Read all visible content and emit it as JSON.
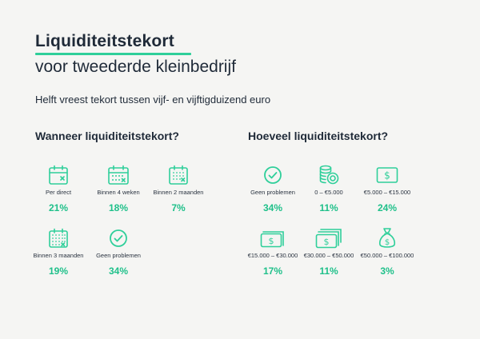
{
  "header": {
    "title": "Liquiditeitstekort",
    "subtitle": "voor tweederde kleinbedrijf",
    "tagline": "Helft vreest tekort tussen vijf- en vijftigduizend euro"
  },
  "colors": {
    "accent": "#2fcf9a",
    "text": "#1f2a38",
    "background": "#f5f5f3"
  },
  "left_section": {
    "heading": "Wanneer liquiditeitstekort?",
    "items": [
      {
        "icon": "calendar-x-icon",
        "label": "Per direct",
        "value": "21%"
      },
      {
        "icon": "calendar-week-icon",
        "label": "Binnen 4 weken",
        "value": "18%"
      },
      {
        "icon": "calendar-month-icon",
        "label": "Binnen 2 maanden",
        "value": "7%"
      },
      {
        "icon": "calendar-quarter-icon",
        "label": "Binnen 3 maanden",
        "value": "19%"
      },
      {
        "icon": "check-circle-icon",
        "label": "Geen problemen",
        "value": "34%"
      }
    ]
  },
  "right_section": {
    "heading": "Hoeveel liquiditeitstekort?",
    "items": [
      {
        "icon": "check-circle-icon",
        "label": "Geen problemen",
        "value": "34%"
      },
      {
        "icon": "coins-icon",
        "label": "0 – €5.000",
        "value": "11%"
      },
      {
        "icon": "banknote-icon",
        "label": "€5.000 – €15.000",
        "value": "24%"
      },
      {
        "icon": "banknotes-double-icon",
        "label": "€15.000 – €30.000",
        "value": "17%"
      },
      {
        "icon": "banknotes-triple-icon",
        "label": "€30.000 – €50.000",
        "value": "11%"
      },
      {
        "icon": "money-bag-icon",
        "label": "€50.000 – €100.000",
        "value": "3%"
      }
    ]
  }
}
